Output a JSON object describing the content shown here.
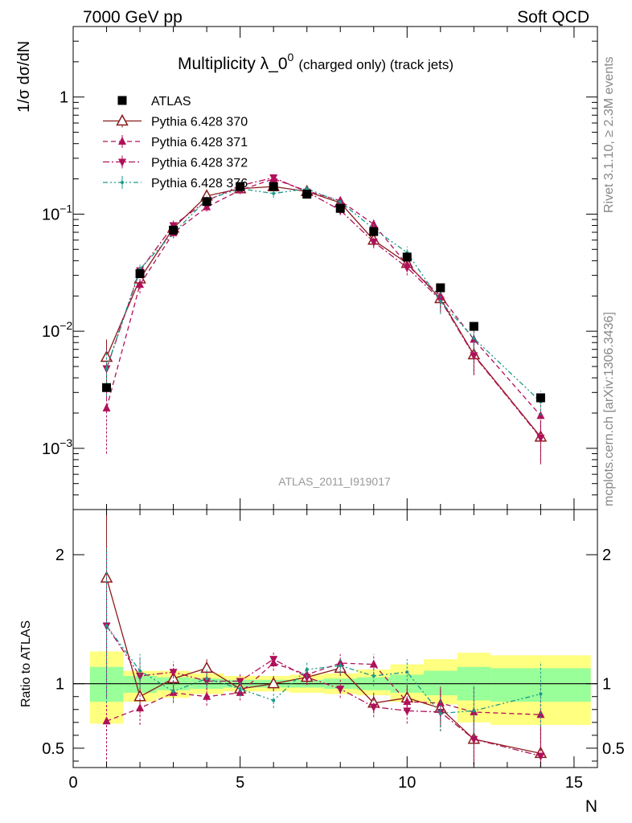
{
  "header": {
    "left": "7000 GeV pp",
    "right": "Soft QCD"
  },
  "side_text": {
    "rivet": "Rivet 3.1.10, ≥ 2.3M events",
    "mcplots": "mcplots.cern.ch [arXiv:1306.3436]"
  },
  "chart_data": [
    {
      "type": "scatter",
      "panel": "main",
      "title": "Multiplicity λ_0⁰",
      "title_main": "Multiplicity λ_0",
      "title_sup": "0",
      "title_suffix": "(charged only) (track jets)",
      "ylabel": "1/σ dσ/dN",
      "yscale": "log",
      "ylim": [
        0.0003,
        4.0
      ],
      "xlim": [
        0,
        15.7
      ],
      "x_ticklabels": [],
      "y_ticklabels": [
        {
          "value": 1,
          "base": "1",
          "exp": ""
        },
        {
          "value": 0.1,
          "base": "10",
          "exp": "−1"
        },
        {
          "value": 0.01,
          "base": "10",
          "exp": "−2"
        },
        {
          "value": 0.001,
          "base": "10",
          "exp": "−3"
        }
      ],
      "watermark": "ATLAS_2011_I919017",
      "legend_position": "top-left",
      "series": [
        {
          "name": "ATLAS",
          "color": "#000000",
          "marker": "square",
          "line": "none",
          "x": [
            1,
            2,
            3,
            4,
            5,
            6,
            7,
            8,
            9,
            10,
            11,
            12,
            14
          ],
          "y": [
            0.0033,
            0.031,
            0.073,
            0.128,
            0.172,
            0.172,
            0.148,
            0.112,
            0.071,
            0.043,
            0.0235,
            0.011,
            0.0027
          ]
        },
        {
          "name": "Pythia 6.428 370",
          "color": "#8b1a1a",
          "marker": "triangle-up-open",
          "line": "solid",
          "x": [
            1,
            2,
            3,
            4,
            5,
            6,
            7,
            8,
            9,
            10,
            11,
            12,
            14
          ],
          "y": [
            0.006,
            0.028,
            0.076,
            0.143,
            0.165,
            0.172,
            0.156,
            0.125,
            0.06,
            0.038,
            0.019,
            0.0063,
            0.00125
          ],
          "err": [
            0.0025,
            0.004,
            0.008,
            0.012,
            0.012,
            0.012,
            0.012,
            0.01,
            0.007,
            0.005,
            0.004,
            0.002,
            0.0005
          ]
        },
        {
          "name": "Pythia 6.428 371",
          "color": "#b0105a",
          "marker": "triangle-up",
          "line": "dashed",
          "x": [
            1,
            2,
            3,
            4,
            5,
            6,
            7,
            8,
            9,
            10,
            11,
            12,
            14
          ],
          "y": [
            0.0022,
            0.025,
            0.069,
            0.115,
            0.16,
            0.2,
            0.158,
            0.13,
            0.082,
            0.037,
            0.02,
            0.0085,
            0.0019
          ],
          "err": [
            0.0013,
            0.004,
            0.007,
            0.01,
            0.012,
            0.014,
            0.012,
            0.011,
            0.009,
            0.005,
            0.004,
            0.002,
            0.0007
          ]
        },
        {
          "name": "Pythia 6.428 372",
          "color": "#b0105a",
          "marker": "triangle-down",
          "line": "dashdot",
          "x": [
            1,
            2,
            3,
            4,
            5,
            6,
            7,
            8,
            9,
            10,
            11,
            12,
            14
          ],
          "y": [
            0.0048,
            0.033,
            0.08,
            0.13,
            0.175,
            0.205,
            0.155,
            0.108,
            0.058,
            0.035,
            0.0185,
            0.0062,
            0.00123
          ],
          "err": [
            0.0022,
            0.004,
            0.008,
            0.011,
            0.013,
            0.014,
            0.012,
            0.01,
            0.007,
            0.005,
            0.004,
            0.002,
            0.0005
          ]
        },
        {
          "name": "Pythia 6.428 376",
          "color": "#1a9a8a",
          "marker": "dot",
          "line": "dashdotdot",
          "x": [
            1,
            2,
            3,
            4,
            5,
            6,
            7,
            8,
            9,
            10,
            11,
            12,
            14
          ],
          "y": [
            0.0048,
            0.034,
            0.069,
            0.133,
            0.165,
            0.15,
            0.165,
            0.127,
            0.075,
            0.047,
            0.018,
            0.0087,
            0.0025
          ],
          "err": [
            0.002,
            0.004,
            0.007,
            0.011,
            0.012,
            0.012,
            0.012,
            0.01,
            0.008,
            0.006,
            0.004,
            0.002,
            0.0006
          ]
        }
      ]
    },
    {
      "type": "line",
      "panel": "ratio",
      "ylabel": "Ratio to ATLAS",
      "xlabel": "N",
      "xlim": [
        0,
        15.7
      ],
      "ylim": [
        0.35,
        2.35
      ],
      "x_ticklabels": [
        "0",
        "5",
        "10",
        "15"
      ],
      "y_ticklabels": [
        "0.5",
        "1",
        "2"
      ],
      "band_colors": {
        "stat": "#99ff99",
        "total": "#ffff80"
      },
      "bands": {
        "x_edges": [
          0.5,
          1.5,
          2.5,
          3.5,
          4.5,
          5.5,
          6.5,
          7.5,
          8.5,
          9.5,
          10.5,
          11.5,
          12.5,
          15.5
        ],
        "stat": [
          [
            0.86,
            1.13
          ],
          [
            0.93,
            1.06
          ],
          [
            0.95,
            1.05
          ],
          [
            0.96,
            1.04
          ],
          [
            0.97,
            1.03
          ],
          [
            0.97,
            1.03
          ],
          [
            0.97,
            1.03
          ],
          [
            0.96,
            1.04
          ],
          [
            0.95,
            1.05
          ],
          [
            0.93,
            1.07
          ],
          [
            0.91,
            1.1
          ],
          [
            0.87,
            1.13
          ],
          [
            0.86,
            1.12
          ]
        ],
        "total": [
          [
            0.69,
            1.25
          ],
          [
            0.86,
            1.1
          ],
          [
            0.89,
            1.1
          ],
          [
            0.92,
            1.08
          ],
          [
            0.94,
            1.06
          ],
          [
            0.94,
            1.06
          ],
          [
            0.93,
            1.07
          ],
          [
            0.92,
            1.08
          ],
          [
            0.91,
            1.11
          ],
          [
            0.86,
            1.15
          ],
          [
            0.84,
            1.19
          ],
          [
            0.7,
            1.24
          ],
          [
            0.68,
            1.22
          ]
        ]
      },
      "series": [
        {
          "name": "Pythia 6.428 370",
          "color": "#8b1a1a",
          "marker": "triangle-up-open",
          "line": "solid",
          "x": [
            1,
            2,
            3,
            4,
            5,
            6,
            7,
            8,
            9,
            10,
            11,
            12,
            14
          ],
          "y": [
            1.82,
            0.9,
            1.04,
            1.12,
            0.96,
            1.0,
            1.05,
            1.12,
            0.85,
            0.89,
            0.81,
            0.57,
            0.46
          ],
          "err": [
            0.6,
            0.13,
            0.08,
            0.07,
            0.06,
            0.06,
            0.06,
            0.06,
            0.08,
            0.1,
            0.15,
            0.2,
            0.22
          ]
        },
        {
          "name": "Pythia 6.428 371",
          "color": "#b0105a",
          "marker": "triangle-up",
          "line": "dashed",
          "x": [
            1,
            2,
            3,
            4,
            5,
            6,
            7,
            8,
            9,
            10,
            11,
            12,
            14
          ],
          "y": [
            0.71,
            0.81,
            0.93,
            0.9,
            0.93,
            1.16,
            1.07,
            1.16,
            1.15,
            0.86,
            0.85,
            0.78,
            0.76
          ],
          "err": [
            0.4,
            0.13,
            0.08,
            0.07,
            0.06,
            0.06,
            0.06,
            0.07,
            0.08,
            0.1,
            0.14,
            0.2,
            0.25
          ]
        },
        {
          "name": "Pythia 6.428 372",
          "color": "#b0105a",
          "marker": "triangle-down",
          "line": "dashdot",
          "x": [
            1,
            2,
            3,
            4,
            5,
            6,
            7,
            8,
            9,
            10,
            11,
            12,
            14
          ],
          "y": [
            1.45,
            1.06,
            1.09,
            1.02,
            1.02,
            1.19,
            1.05,
            0.96,
            0.82,
            0.79,
            0.78,
            0.57,
            0.44
          ],
          "err": [
            0.55,
            0.13,
            0.08,
            0.07,
            0.06,
            0.06,
            0.06,
            0.07,
            0.08,
            0.1,
            0.15,
            0.2,
            0.22
          ]
        },
        {
          "name": "Pythia 6.428 376",
          "color": "#1a9a8a",
          "marker": "dot",
          "line": "dashdotdot",
          "x": [
            1,
            2,
            3,
            4,
            5,
            6,
            7,
            8,
            9,
            10,
            11,
            12,
            14
          ],
          "y": [
            1.45,
            1.1,
            0.94,
            1.04,
            0.96,
            0.87,
            1.11,
            1.14,
            1.06,
            1.09,
            0.77,
            0.79,
            0.92
          ],
          "err": [
            0.6,
            0.13,
            0.08,
            0.07,
            0.06,
            0.06,
            0.06,
            0.06,
            0.08,
            0.1,
            0.14,
            0.2,
            0.25
          ]
        }
      ]
    }
  ]
}
